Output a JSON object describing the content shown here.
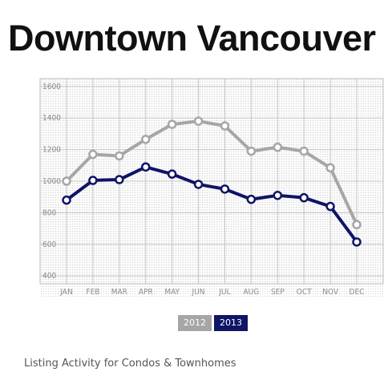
{
  "title": "Downtown Vancouver",
  "caption": "Listing Activity for Condos & Townhomes",
  "colors": {
    "s2012": "#a6a6a6",
    "s2013": "#0f1466",
    "grid": "#c8c8c8",
    "frame": "#bdbdbd"
  },
  "chart_data": {
    "type": "line",
    "title": "Downtown Vancouver",
    "xlabel": "",
    "ylabel": "",
    "categories": [
      "JAN",
      "FEB",
      "MAR",
      "APR",
      "MAY",
      "JUN",
      "JUL",
      "AUG",
      "SEP",
      "OCT",
      "NOV",
      "DEC"
    ],
    "yticks": [
      400,
      600,
      800,
      1000,
      1200,
      1400,
      1600
    ],
    "ylim": [
      350,
      1650
    ],
    "grid": true,
    "legend": "bottom-center",
    "series": [
      {
        "name": "2012",
        "color": "#a6a6a6",
        "values": [
          1000,
          1170,
          1160,
          1265,
          1360,
          1380,
          1350,
          1190,
          1215,
          1190,
          1085,
          725
        ]
      },
      {
        "name": "2013",
        "color": "#0f1466",
        "values": [
          880,
          1005,
          1010,
          1090,
          1045,
          980,
          950,
          885,
          910,
          895,
          840,
          615
        ]
      }
    ]
  }
}
